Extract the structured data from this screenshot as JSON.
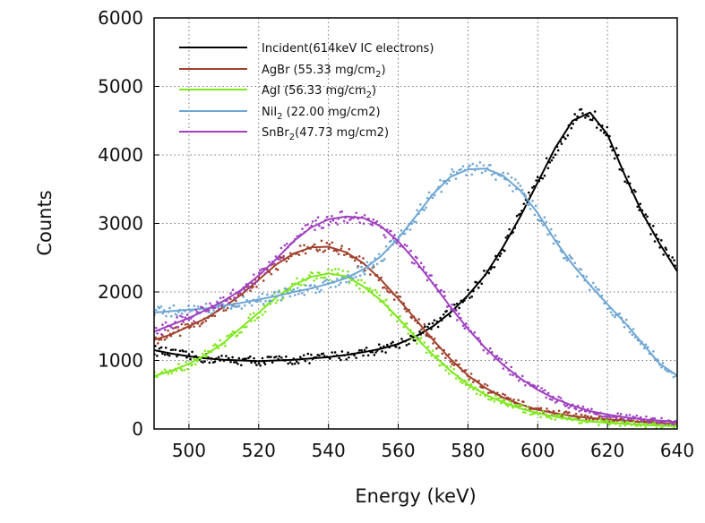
{
  "chart_data": {
    "type": "line",
    "title": "",
    "xlabel": "Energy (keV)",
    "ylabel": "Counts",
    "xlim": [
      490,
      640
    ],
    "ylim": [
      0,
      6000
    ],
    "grid": true,
    "legend_position": "top-left",
    "x_ticks": [
      500,
      520,
      540,
      560,
      580,
      600,
      620,
      640
    ],
    "y_ticks": [
      0,
      1000,
      2000,
      3000,
      4000,
      5000,
      6000
    ],
    "x": [
      490,
      495,
      500,
      505,
      510,
      515,
      520,
      525,
      530,
      535,
      540,
      545,
      550,
      555,
      560,
      565,
      570,
      575,
      580,
      585,
      590,
      595,
      600,
      605,
      610,
      615,
      620,
      625,
      630,
      635,
      640
    ],
    "series": [
      {
        "name": "Incident(614keV IC electrons)",
        "label_main": "Incident(614keV IC electrons)",
        "label_sub": "",
        "label_tail": "",
        "color": "#000000",
        "values": [
          1150,
          1100,
          1060,
          1030,
          1010,
          1000,
          990,
          1000,
          1010,
          1030,
          1050,
          1080,
          1120,
          1170,
          1240,
          1350,
          1500,
          1700,
          1950,
          2250,
          2650,
          3100,
          3600,
          4100,
          4500,
          4620,
          4300,
          3700,
          3150,
          2700,
          2300
        ]
      },
      {
        "name": "AgBr (55.33 mg/cm2)",
        "label_main": "AgBr  (55.33 mg/cm",
        "label_sub": "2",
        "label_tail": ")",
        "color": "#a0412d",
        "values": [
          1300,
          1380,
          1500,
          1620,
          1780,
          1960,
          2180,
          2400,
          2560,
          2650,
          2660,
          2580,
          2420,
          2180,
          1900,
          1600,
          1300,
          1020,
          780,
          600,
          460,
          360,
          280,
          230,
          190,
          160,
          140,
          120,
          100,
          85,
          70
        ]
      },
      {
        "name": "AgI (56.33 mg/cm2)",
        "label_main": "AgI   (56.33 mg/cm",
        "label_sub": "2",
        "label_tail": ")",
        "color": "#7fe81e",
        "values": [
          770,
          850,
          950,
          1090,
          1260,
          1480,
          1700,
          1920,
          2100,
          2220,
          2270,
          2230,
          2080,
          1880,
          1620,
          1340,
          1080,
          850,
          650,
          500,
          390,
          300,
          230,
          180,
          140,
          110,
          90,
          75,
          60,
          50,
          40
        ]
      },
      {
        "name": "NiI2 (22.00 mg/cm2)",
        "label_main": "NiI",
        "label_sub": "2",
        "label_tail": " (22.00 mg/cm2)",
        "color": "#6fa6d4",
        "values": [
          1700,
          1720,
          1740,
          1760,
          1800,
          1840,
          1890,
          1940,
          2000,
          2050,
          2120,
          2200,
          2330,
          2520,
          2780,
          3100,
          3430,
          3680,
          3790,
          3800,
          3700,
          3480,
          3150,
          2750,
          2400,
          2100,
          1820,
          1550,
          1250,
          950,
          780
        ]
      },
      {
        "name": "SnBr2 (47.73 mg/cm2)",
        "label_main": "SnBr",
        "label_sub": "2",
        "label_tail": "(47.73 mg/cm2)",
        "color": "#a041c0",
        "values": [
          1420,
          1520,
          1620,
          1740,
          1870,
          2030,
          2240,
          2480,
          2740,
          2940,
          3060,
          3100,
          3080,
          2960,
          2740,
          2450,
          2120,
          1780,
          1460,
          1180,
          940,
          740,
          570,
          440,
          340,
          260,
          210,
          170,
          140,
          120,
          100
        ]
      }
    ]
  }
}
